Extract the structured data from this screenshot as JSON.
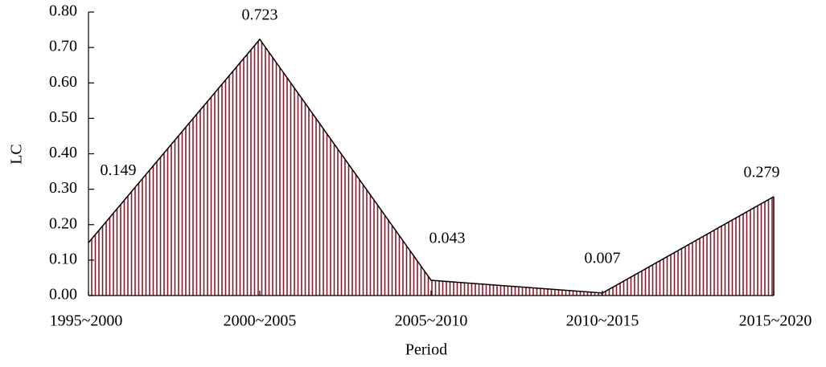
{
  "chart_data": {
    "type": "area",
    "x_label": "Period",
    "y_label": "LC",
    "categories": [
      "1995~2000",
      "2000~2005",
      "2005~2010",
      "2010~2015",
      "2015~2020"
    ],
    "values": [
      0.149,
      0.723,
      0.043,
      0.007,
      0.279
    ],
    "color": "#8b1a2b",
    "ylim": [
      0,
      0.8
    ],
    "yticks": [
      {
        "value": 0,
        "label": "0.00"
      },
      {
        "value": 0.1,
        "label": "0.10"
      },
      {
        "value": 0.2,
        "label": "0.20"
      },
      {
        "value": 0.3,
        "label": "0.30"
      },
      {
        "value": 0.4,
        "label": "0.40"
      },
      {
        "value": 0.5,
        "label": "0.50"
      },
      {
        "value": 0.6,
        "label": "0.60"
      },
      {
        "value": 0.7,
        "label": "0.70"
      },
      {
        "value": 0.8,
        "label": "0.80"
      }
    ]
  }
}
